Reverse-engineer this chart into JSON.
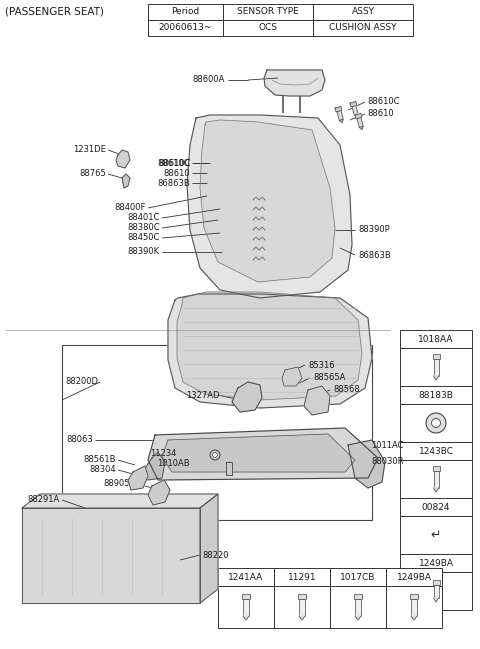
{
  "bg_color": "#ffffff",
  "title": "(PASSENGER SEAT)",
  "table_headers": [
    "Period",
    "SENSOR TYPE",
    "ASSY"
  ],
  "table_row": [
    "20060613~",
    "OCS",
    "CUSHION ASSY"
  ],
  "right_table": [
    "1018AA",
    "88183B",
    "1243BC",
    "00824"
  ],
  "bottom_table": [
    "1241AA",
    "11291",
    "1017CB",
    "1249BA"
  ],
  "seat_back_labels_left": [
    [
      "88610C",
      195,
      162
    ],
    [
      "88610",
      195,
      172
    ],
    [
      "86863B",
      195,
      182
    ],
    [
      "88400F",
      150,
      208
    ],
    [
      "88401C",
      165,
      218
    ],
    [
      "88380C",
      165,
      228
    ],
    [
      "88450C",
      165,
      238
    ],
    [
      "88390K",
      165,
      252
    ]
  ],
  "seat_back_labels_right": [
    [
      "88390P",
      355,
      230
    ],
    [
      "86863B",
      355,
      248
    ]
  ]
}
